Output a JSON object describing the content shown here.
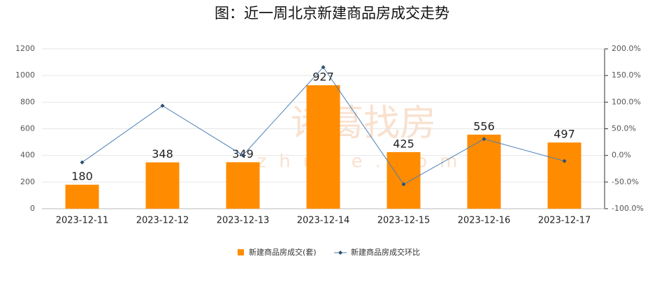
{
  "chart_data": {
    "type": "bar_line",
    "title": "图：近一周北京新建商品房成交走势",
    "watermark": "诸葛找房",
    "watermark_sub": "zhuge.com",
    "categories": [
      "2023-12-11",
      "2023-12-12",
      "2023-12-13",
      "2023-12-14",
      "2023-12-15",
      "2023-12-16",
      "2023-12-17"
    ],
    "series": [
      {
        "name": "新建商品房成交(套)",
        "color": "#ff8c00",
        "values": [
          180,
          348,
          349,
          927,
          425,
          556,
          497
        ]
      },
      {
        "name": "新建商品房成交环比",
        "color": "#4a7fb5",
        "axis": "y2",
        "values": [
          -13,
          93.3,
          0.3,
          165.6,
          -54.2,
          30.8,
          -10.6
        ]
      }
    ],
    "ylim": [
      0,
      1200
    ],
    "yticks": [
      0,
      200,
      400,
      600,
      800,
      1000,
      1200
    ],
    "y2lim": [
      -100,
      200
    ],
    "y2ticks": [
      {
        "value": -100,
        "label": "-100.0%"
      },
      {
        "value": -50,
        "label": "-50.0%"
      },
      {
        "value": 0,
        "label": "0.0%"
      },
      {
        "value": 50,
        "label": "50.0%"
      },
      {
        "value": 100,
        "label": "100.0%"
      },
      {
        "value": 150,
        "label": "150.0%"
      },
      {
        "value": 200,
        "label": "200.0%"
      }
    ],
    "grid": true
  }
}
